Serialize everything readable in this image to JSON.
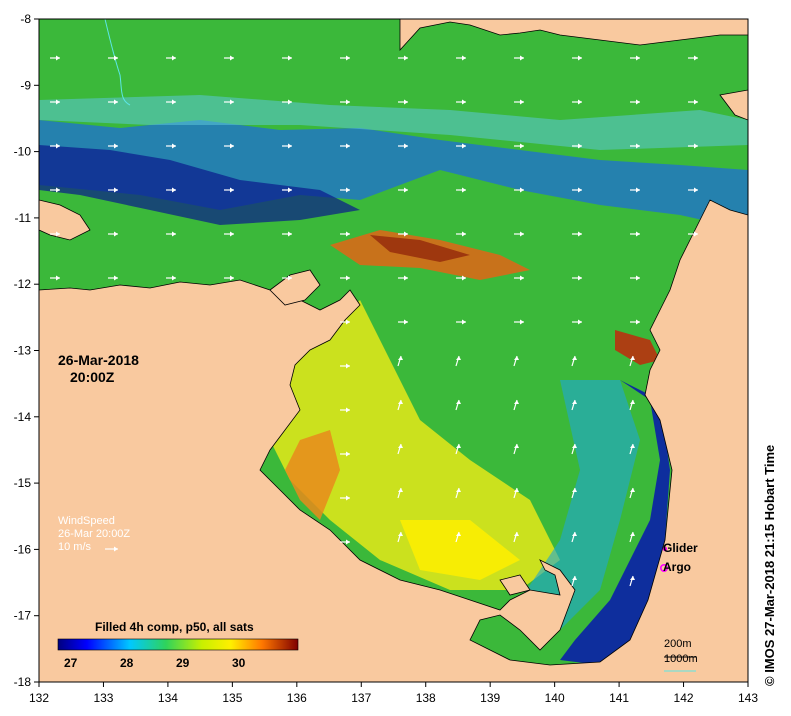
{
  "map": {
    "x_ticks": [
      "132",
      "133",
      "134",
      "135",
      "136",
      "137",
      "138",
      "139",
      "140",
      "141",
      "142",
      "143"
    ],
    "y_ticks": [
      "-8",
      "-9",
      "-10",
      "-11",
      "-12",
      "-13",
      "-14",
      "-15",
      "-16",
      "-17",
      "-18"
    ],
    "colors": {
      "land": "#f9c99f",
      "sea_base": "#3bb83a"
    }
  },
  "labels": {
    "date": "26-Mar-2018",
    "time": "20:00Z",
    "wind_title": "WindSpeed",
    "wind_date": "26-Mar 20:00Z",
    "wind_scale": "10 m/s",
    "colorbar_title": "Filled 4h comp, p50, all sats",
    "colorbar_ticks": [
      "27",
      "28",
      "29",
      "30"
    ],
    "legend_glider": "Glider",
    "legend_argo": "Argo",
    "scale_200": "200m",
    "scale_1000": "1000m",
    "credit": "© IMOS 27-Mar-2018 21:15 Hobart Time"
  }
}
